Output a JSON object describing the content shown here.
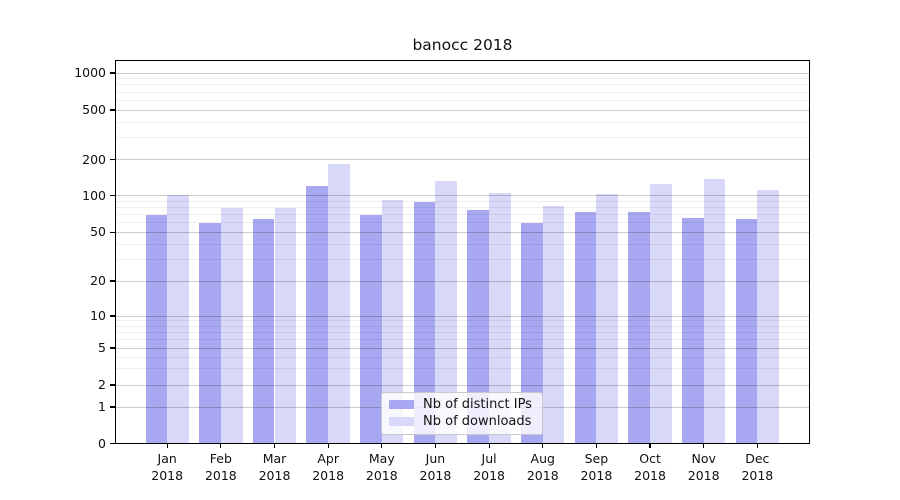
{
  "title": "banocc 2018",
  "chart_data": {
    "type": "bar",
    "title": "banocc 2018",
    "categories": [
      "Jan",
      "Feb",
      "Mar",
      "Apr",
      "May",
      "Jun",
      "Jul",
      "Aug",
      "Sep",
      "Oct",
      "Nov",
      "Dec"
    ],
    "year": "2018",
    "series": [
      {
        "name": "Nb of distinct IPs",
        "color": "#a8a8f2",
        "values": [
          70,
          60,
          65,
          120,
          70,
          89,
          76,
          60,
          73,
          73,
          66,
          64
        ]
      },
      {
        "name": "Nb of downloads",
        "color": "#d8d8f8",
        "values": [
          102,
          79,
          80,
          183,
          92,
          134,
          105,
          83,
          104,
          126,
          137,
          111
        ]
      }
    ],
    "xlabel": "",
    "ylabel": "",
    "yscale": "symlog",
    "ylim": [
      0,
      1300
    ],
    "y_ticks": [
      0,
      1,
      2,
      5,
      10,
      20,
      50,
      100,
      200,
      500,
      1000
    ],
    "y_minor_ticks": [
      3,
      4,
      6,
      7,
      8,
      9,
      30,
      40,
      60,
      70,
      80,
      90,
      300,
      400,
      600,
      700,
      800,
      900
    ],
    "grid": true,
    "legend_position": "lower center",
    "colors": {
      "distinct_ips": "#a8a8f2",
      "downloads": "#d8d8f8",
      "grid_major": "#c8c8c8",
      "grid_minor": "#ededed",
      "frame": "#000000"
    }
  }
}
